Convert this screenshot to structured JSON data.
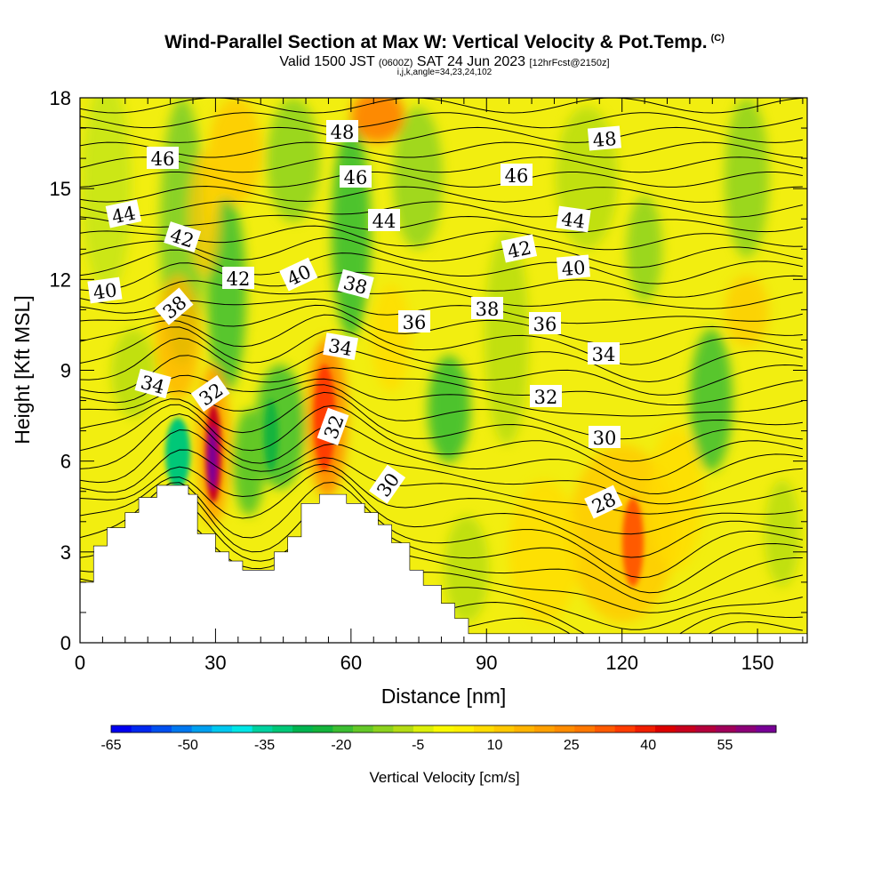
{
  "header": {
    "title": "Wind-Parallel Section at Max W: Vertical Velocity & Pot.Temp.",
    "copyright": "(C)",
    "valid_prefix": "Valid 1500 JST",
    "valid_utc": "(0600Z)",
    "valid_date": "SAT 24 Jun 2023",
    "forecast": "[12hrFcst@2150z]",
    "grid_info": "i,j,k,angle=34,23,24,102"
  },
  "chart_data": {
    "type": "heatmap",
    "title": "Wind-Parallel Section at Max W: Vertical Velocity & Pot.Temp.",
    "xlabel": "Distance [nm]",
    "ylabel": "Height [Kft MSL]",
    "xlim": [
      0,
      161
    ],
    "ylim": [
      0,
      18
    ],
    "xticks": [
      0,
      30,
      60,
      90,
      120,
      150
    ],
    "yticks": [
      0,
      3,
      6,
      9,
      12,
      15,
      18
    ],
    "colorbar": {
      "title": "Vertical Velocity [cm/s]",
      "tick_labels": [
        "-65",
        "-50",
        "-35",
        "-20",
        "-5",
        "10",
        "25",
        "40",
        "55"
      ],
      "tick_values": [
        -65,
        -50,
        -35,
        -20,
        -5,
        10,
        25,
        40,
        55
      ],
      "min": -65,
      "max": 65,
      "step": 5,
      "colors": [
        "#0000f0",
        "#0028f0",
        "#0050f0",
        "#0078f0",
        "#00a0f0",
        "#00c8f0",
        "#00e6e6",
        "#00d2a0",
        "#00c878",
        "#00b450",
        "#14b43c",
        "#3cbe32",
        "#64c828",
        "#8cd21e",
        "#b4dc14",
        "#dcf00a",
        "#fafa00",
        "#fff000",
        "#ffdc00",
        "#ffc800",
        "#ffb400",
        "#ffa000",
        "#ff8c00",
        "#ff7800",
        "#ff5a00",
        "#ff3c00",
        "#f01e00",
        "#dc0000",
        "#c8001e",
        "#b4003c",
        "#a0005a",
        "#8c0078",
        "#780096"
      ]
    },
    "contour_labels": [
      "48",
      "48",
      "46",
      "46",
      "46",
      "44",
      "44",
      "44",
      "42",
      "42",
      "42",
      "40",
      "40",
      "40",
      "38",
      "38",
      "38",
      "36",
      "36",
      "34",
      "34",
      "34",
      "32",
      "32",
      "32",
      "30",
      "30",
      "28"
    ],
    "terrain_heights_kft": [
      {
        "x": 0,
        "h": 2.0
      },
      {
        "x": 3,
        "h": 3.2
      },
      {
        "x": 6,
        "h": 3.8
      },
      {
        "x": 10,
        "h": 4.3
      },
      {
        "x": 13,
        "h": 4.8
      },
      {
        "x": 17,
        "h": 5.2
      },
      {
        "x": 21,
        "h": 5.2
      },
      {
        "x": 24,
        "h": 4.9
      },
      {
        "x": 26,
        "h": 3.6
      },
      {
        "x": 30,
        "h": 3.0
      },
      {
        "x": 33,
        "h": 2.7
      },
      {
        "x": 36,
        "h": 2.4
      },
      {
        "x": 40,
        "h": 2.4
      },
      {
        "x": 43,
        "h": 3.0
      },
      {
        "x": 46,
        "h": 3.5
      },
      {
        "x": 49,
        "h": 4.6
      },
      {
        "x": 53,
        "h": 4.9
      },
      {
        "x": 56,
        "h": 4.9
      },
      {
        "x": 59,
        "h": 4.6
      },
      {
        "x": 63,
        "h": 4.3
      },
      {
        "x": 66,
        "h": 3.9
      },
      {
        "x": 69,
        "h": 3.3
      },
      {
        "x": 73,
        "h": 2.4
      },
      {
        "x": 76,
        "h": 1.9
      },
      {
        "x": 80,
        "h": 1.3
      },
      {
        "x": 83,
        "h": 0.8
      },
      {
        "x": 86,
        "h": 0.3
      },
      {
        "x": 161,
        "h": 0.3
      }
    ]
  },
  "colors": {
    "background": "#ffffff",
    "field_base": "#f5f000",
    "terrain": "#ffffff",
    "contour": "#000000"
  }
}
